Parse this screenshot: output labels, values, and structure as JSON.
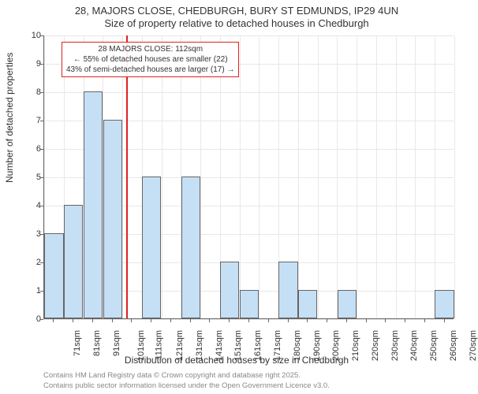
{
  "chart": {
    "type": "histogram",
    "title_line1": "28, MAJORS CLOSE, CHEDBURGH, BURY ST EDMUNDS, IP29 4UN",
    "title_line2": "Size of property relative to detached houses in Chedburgh",
    "ylabel": "Number of detached properties",
    "xlabel": "Distribution of detached houses by size in Chedburgh",
    "ylim": [
      0,
      10
    ],
    "yticks": [
      0,
      1,
      2,
      3,
      4,
      5,
      6,
      7,
      8,
      9,
      10
    ],
    "xticks": [
      "71sqm",
      "81sqm",
      "91sqm",
      "101sqm",
      "111sqm",
      "121sqm",
      "131sqm",
      "141sqm",
      "151sqm",
      "161sqm",
      "171sqm",
      "180sqm",
      "190sqm",
      "200sqm",
      "210sqm",
      "220sqm",
      "230sqm",
      "240sqm",
      "250sqm",
      "260sqm",
      "270sqm"
    ],
    "values": [
      3,
      4,
      8,
      7,
      0,
      5,
      0,
      5,
      0,
      2,
      1,
      0,
      2,
      1,
      0,
      1,
      0,
      0,
      0,
      0,
      1
    ],
    "bar_color": "#c5dff5",
    "bar_border_color": "#666666",
    "background_color": "#ffffff",
    "grid_color": "#e8e8e8",
    "marker_position_index": 4,
    "marker_color": "#d22",
    "annotation": {
      "line1": "28 MAJORS CLOSE: 112sqm",
      "line2": "← 55% of detached houses are smaller (22)",
      "line3": "43% of semi-detached houses are larger (17) →"
    },
    "footer_line1": "Contains HM Land Registry data © Crown copyright and database right 2025.",
    "footer_line2": "Contains public sector information licensed under the Open Government Licence v3.0."
  }
}
